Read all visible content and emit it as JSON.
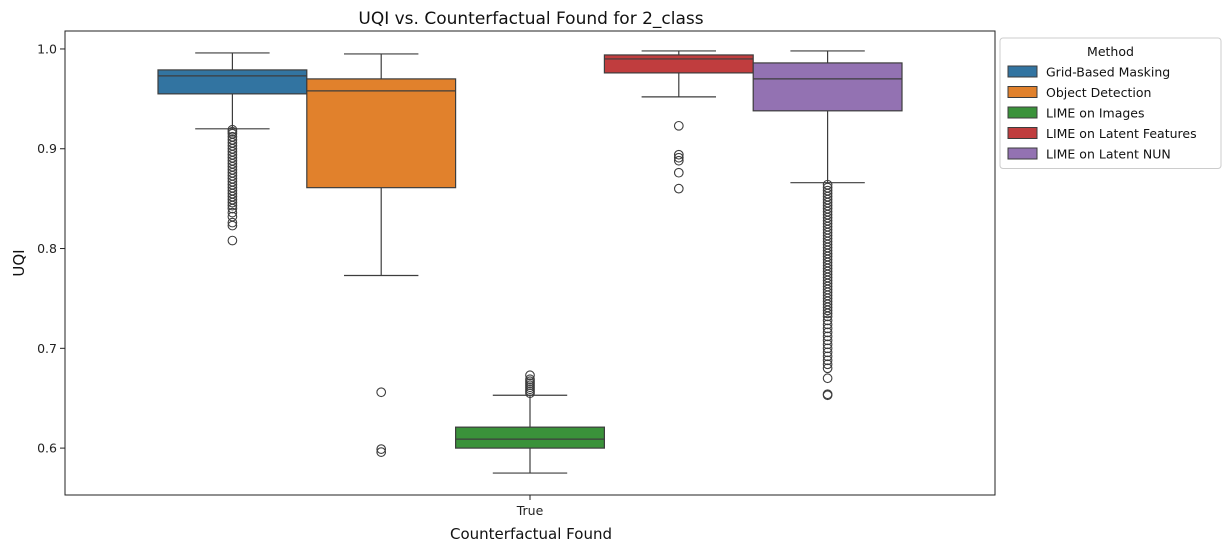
{
  "chart_data": {
    "type": "box",
    "title": "UQI vs. Counterfactual Found for 2_class",
    "xlabel": "Counterfactual Found",
    "ylabel": "UQI",
    "categories": [
      "True"
    ],
    "ylim": [
      0.553,
      1.018
    ],
    "yticks": [
      "0.6",
      "0.7",
      "0.8",
      "0.9",
      "1.0"
    ],
    "grid": false,
    "legend": {
      "title": "Method",
      "placement": "outside-top-right"
    },
    "series": [
      {
        "name": "Grid-Based Masking",
        "color": "#3274a1",
        "whisker_low": 0.92,
        "q1": 0.955,
        "median": 0.973,
        "q3": 0.979,
        "whisker_high": 0.996,
        "outliers": [
          0.919,
          0.917,
          0.915,
          0.912,
          0.909,
          0.906,
          0.903,
          0.9,
          0.897,
          0.894,
          0.891,
          0.888,
          0.885,
          0.882,
          0.879,
          0.876,
          0.873,
          0.87,
          0.867,
          0.864,
          0.861,
          0.858,
          0.855,
          0.852,
          0.849,
          0.846,
          0.843,
          0.84,
          0.836,
          0.832,
          0.826,
          0.823,
          0.808
        ]
      },
      {
        "name": "Object Detection",
        "color": "#e1812c",
        "whisker_low": 0.773,
        "q1": 0.861,
        "median": 0.958,
        "q3": 0.97,
        "whisker_high": 0.995,
        "outliers": [
          0.656,
          0.599,
          0.596
        ]
      },
      {
        "name": "LIME on Images",
        "color": "#3a923a",
        "whisker_low": 0.575,
        "q1": 0.6,
        "median": 0.609,
        "q3": 0.621,
        "whisker_high": 0.653,
        "outliers": [
          0.655,
          0.657,
          0.659,
          0.661,
          0.663,
          0.665,
          0.667,
          0.669,
          0.673
        ]
      },
      {
        "name": "LIME on Latent Features",
        "color": "#c03d3e",
        "whisker_low": 0.952,
        "q1": 0.976,
        "median": 0.99,
        "q3": 0.994,
        "whisker_high": 0.998,
        "outliers": [
          0.923,
          0.894,
          0.891,
          0.888,
          0.876,
          0.86
        ]
      },
      {
        "name": "LIME on Latent NUN",
        "color": "#9372b2",
        "whisker_low": 0.866,
        "q1": 0.938,
        "median": 0.97,
        "q3": 0.986,
        "whisker_high": 0.998,
        "outliers": [
          0.864,
          0.861,
          0.858,
          0.855,
          0.852,
          0.849,
          0.846,
          0.843,
          0.84,
          0.837,
          0.834,
          0.831,
          0.828,
          0.825,
          0.822,
          0.819,
          0.816,
          0.813,
          0.81,
          0.807,
          0.804,
          0.801,
          0.798,
          0.795,
          0.792,
          0.789,
          0.786,
          0.783,
          0.78,
          0.777,
          0.774,
          0.771,
          0.768,
          0.765,
          0.762,
          0.759,
          0.756,
          0.753,
          0.75,
          0.747,
          0.744,
          0.741,
          0.738,
          0.735,
          0.732,
          0.728,
          0.724,
          0.72,
          0.716,
          0.712,
          0.708,
          0.704,
          0.7,
          0.696,
          0.692,
          0.688,
          0.684,
          0.68,
          0.67,
          0.654,
          0.653
        ]
      }
    ]
  }
}
